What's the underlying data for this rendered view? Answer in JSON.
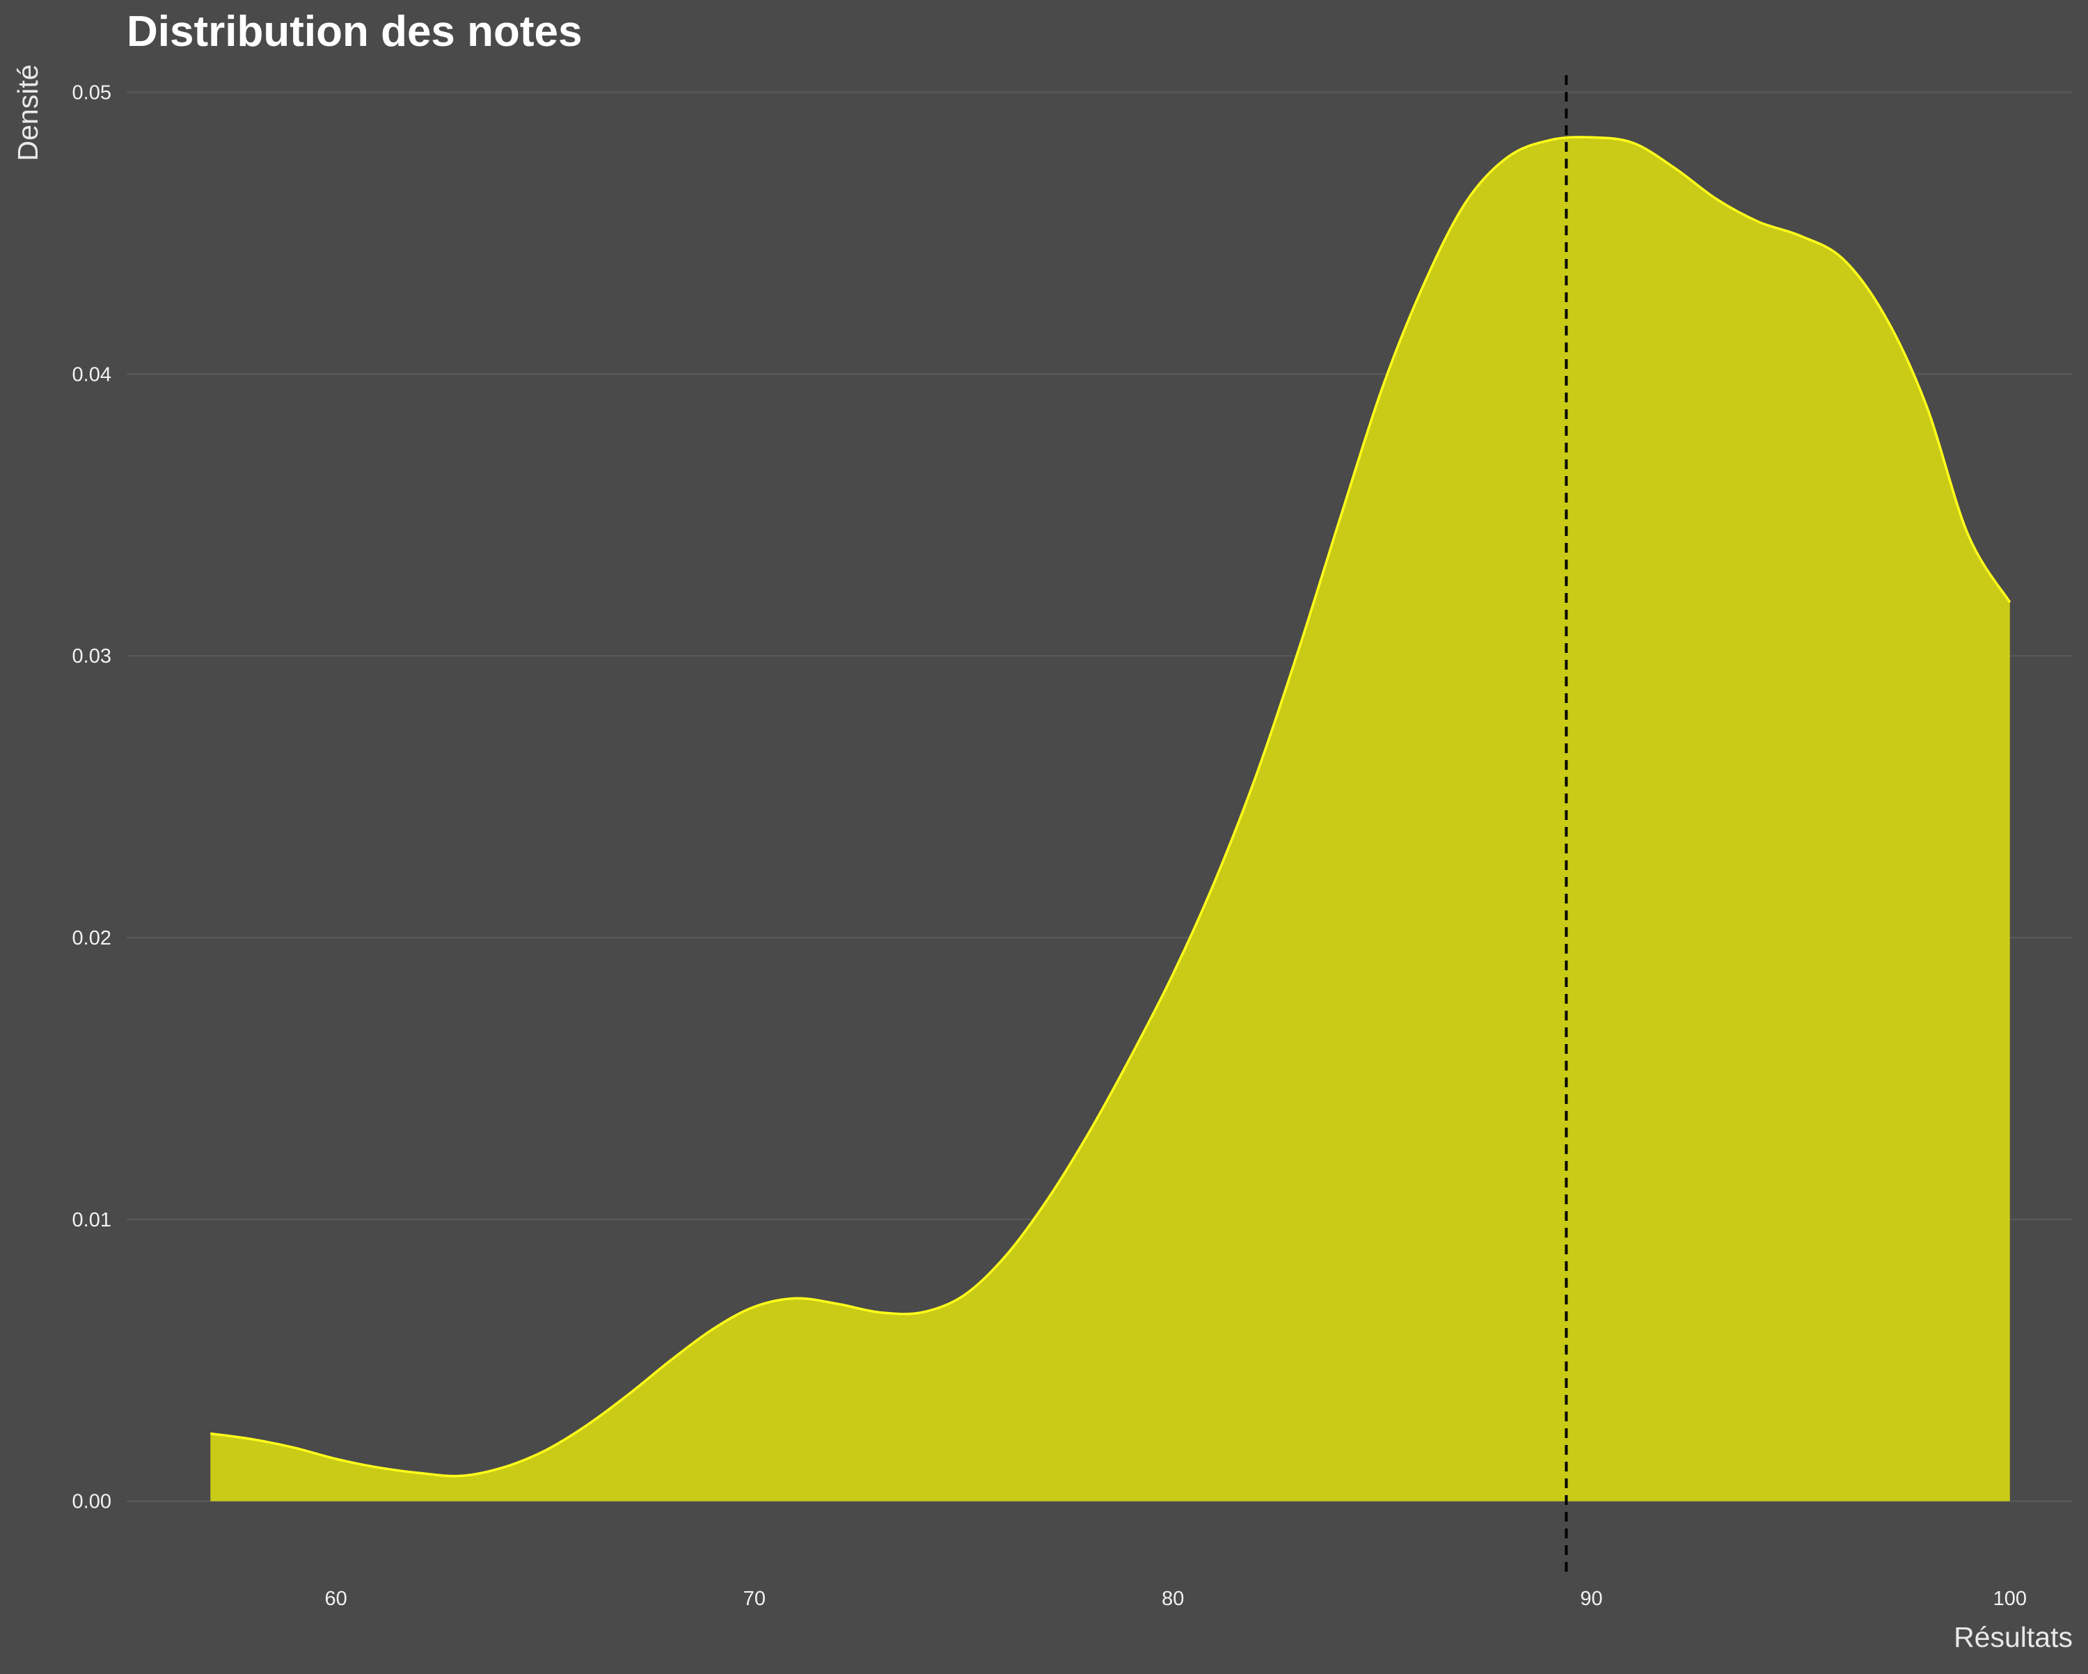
{
  "chart_data": {
    "type": "area",
    "title": "Distribution des notes",
    "xlabel": "Résultats",
    "ylabel": "Densité",
    "xlim": [
      55,
      101.5
    ],
    "ylim": [
      -0.0026,
      0.0511
    ],
    "x_ticks": [
      60,
      70,
      80,
      90,
      100
    ],
    "x_tick_labels": [
      "60",
      "70",
      "80",
      "90",
      "100"
    ],
    "y_ticks": [
      0.0,
      0.01,
      0.02,
      0.03,
      0.04,
      0.05
    ],
    "y_tick_labels": [
      "0.00",
      "0.01",
      "0.02",
      "0.03",
      "0.04",
      "0.05"
    ],
    "grid": true,
    "legend": "none",
    "mean_line": 89.4,
    "series": [
      {
        "x": [
          57,
          58,
          59,
          60,
          61,
          62,
          63,
          64,
          65,
          66,
          67,
          68,
          69,
          70,
          71,
          72,
          73,
          74,
          75,
          76,
          77,
          78,
          79,
          80,
          81,
          82,
          83,
          84,
          85,
          86,
          87,
          88,
          89,
          90,
          91,
          92,
          93,
          94,
          95,
          96,
          97,
          98,
          99,
          100
        ],
        "y": [
          0.0024,
          0.0022,
          0.0019,
          0.0015,
          0.0012,
          0.001,
          0.0009,
          0.0012,
          0.0018,
          0.0027,
          0.0038,
          0.005,
          0.0061,
          0.0069,
          0.0072,
          0.007,
          0.0067,
          0.0067,
          0.0073,
          0.0087,
          0.0107,
          0.0131,
          0.0158,
          0.0187,
          0.022,
          0.0258,
          0.0302,
          0.0349,
          0.0395,
          0.0432,
          0.0461,
          0.0477,
          0.0483,
          0.0484,
          0.0482,
          0.0473,
          0.0462,
          0.0454,
          0.0449,
          0.0441,
          0.0421,
          0.0389,
          0.0343,
          0.0319
        ]
      }
    ],
    "colors": {
      "background": "#4a4a4a",
      "fill": "#c9cb17",
      "line": "#ffff1a",
      "grid": "#5a5a5a",
      "mean_line": "#000000"
    }
  }
}
